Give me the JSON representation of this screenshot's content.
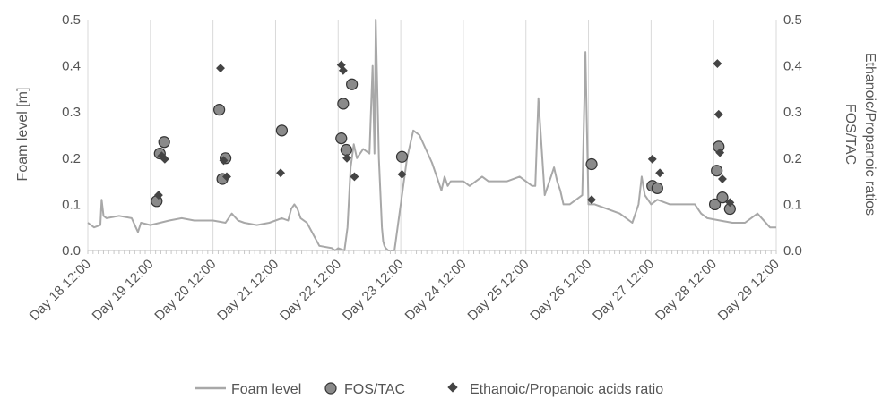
{
  "chart_data": {
    "type": "line",
    "title": "",
    "categories": [
      "Day 18 12:00",
      "Day 19 12:00",
      "Day 20 12:00",
      "Day 21 12:00",
      "Day 22 12:00",
      "Day 23 12:00",
      "Day 24 12:00",
      "Day 25 12:00",
      "Day 26 12:00",
      "Day 27 12:00",
      "Day 28 12:00",
      "Day 29 12:00"
    ],
    "xlabel": "",
    "ylabel": "Foam level [m]",
    "y2label_lines": [
      "FOS/TAC",
      "Ethanoic/Propanoic ratios"
    ],
    "xlim": [
      18.5,
      29.5
    ],
    "ylim": [
      0,
      0.5
    ],
    "y2lim": [
      0,
      0.5
    ],
    "yticks": [
      "0.0",
      "0.1",
      "0.2",
      "0.3",
      "0.4",
      "0.5"
    ],
    "y2ticks": [
      "0.0",
      "0.1",
      "0.2",
      "0.3",
      "0.4",
      "0.5"
    ],
    "grid": "vertical",
    "legend_position": "bottom",
    "colors": {
      "foam": "#a8a8a8",
      "fos_marker": "#8a8a8a",
      "ratio_marker": "#444444",
      "grid": "#d9d9d9",
      "text": "#555555"
    },
    "series": [
      {
        "name": "Foam level",
        "kind": "line",
        "x": [
          18.5,
          18.6,
          18.7,
          18.72,
          18.75,
          18.8,
          19.0,
          19.2,
          19.3,
          19.35,
          19.5,
          19.8,
          20.0,
          20.2,
          20.5,
          20.7,
          20.8,
          20.9,
          21.0,
          21.2,
          21.4,
          21.6,
          21.7,
          21.75,
          21.8,
          21.85,
          21.9,
          22.0,
          22.2,
          22.4,
          22.45,
          22.5,
          22.6,
          22.65,
          22.7,
          22.75,
          22.8,
          22.9,
          23.0,
          23.05,
          23.08,
          23.1,
          23.15,
          23.2,
          23.22,
          23.24,
          23.26,
          23.3,
          23.4,
          23.5,
          23.6,
          23.7,
          23.8,
          23.9,
          24.0,
          24.1,
          24.15,
          24.2,
          24.25,
          24.3,
          24.4,
          24.5,
          24.6,
          24.7,
          24.8,
          24.9,
          25.0,
          25.2,
          25.4,
          25.6,
          25.65,
          25.7,
          25.8,
          25.9,
          25.95,
          26.0,
          26.05,
          26.1,
          26.2,
          26.4,
          26.45,
          26.5,
          26.6,
          26.8,
          27.0,
          27.2,
          27.3,
          27.35,
          27.4,
          27.5,
          27.6,
          27.8,
          28.0,
          28.2,
          28.3,
          28.4,
          28.6,
          28.8,
          29.0,
          29.2,
          29.4,
          29.5
        ],
        "values": [
          0.06,
          0.05,
          0.055,
          0.11,
          0.075,
          0.07,
          0.075,
          0.07,
          0.04,
          0.06,
          0.055,
          0.065,
          0.07,
          0.065,
          0.065,
          0.06,
          0.08,
          0.065,
          0.06,
          0.055,
          0.06,
          0.07,
          0.065,
          0.09,
          0.1,
          0.09,
          0.07,
          0.06,
          0.01,
          0.005,
          0.0,
          0.005,
          0.0,
          0.05,
          0.18,
          0.23,
          0.2,
          0.22,
          0.21,
          0.4,
          0.21,
          0.5,
          0.2,
          0.05,
          0.02,
          0.01,
          0.005,
          0.0,
          0.0,
          0.1,
          0.2,
          0.26,
          0.25,
          0.22,
          0.19,
          0.15,
          0.13,
          0.16,
          0.14,
          0.15,
          0.15,
          0.15,
          0.14,
          0.15,
          0.16,
          0.15,
          0.15,
          0.15,
          0.16,
          0.14,
          0.14,
          0.33,
          0.12,
          0.16,
          0.18,
          0.15,
          0.13,
          0.1,
          0.1,
          0.12,
          0.43,
          0.1,
          0.1,
          0.09,
          0.08,
          0.06,
          0.1,
          0.16,
          0.12,
          0.1,
          0.11,
          0.1,
          0.1,
          0.1,
          0.08,
          0.07,
          0.065,
          0.06,
          0.06,
          0.08,
          0.05,
          0.05
        ]
      },
      {
        "name": "FOS/TAC",
        "kind": "scatter",
        "x": [
          19.6,
          19.65,
          19.72,
          20.6,
          20.65,
          20.7,
          21.6,
          22.55,
          22.58,
          22.63,
          22.72,
          23.52,
          26.55,
          27.52,
          27.6,
          28.52,
          28.55,
          28.58,
          28.64,
          28.76
        ],
        "values": [
          0.107,
          0.21,
          0.235,
          0.305,
          0.155,
          0.2,
          0.26,
          0.243,
          0.318,
          0.218,
          0.36,
          0.203,
          0.187,
          0.14,
          0.135,
          0.1,
          0.173,
          0.225,
          0.115,
          0.09
        ]
      },
      {
        "name": "Ethanoic/Propanoic acids ratio",
        "kind": "scatter",
        "x": [
          19.63,
          19.68,
          19.73,
          20.62,
          20.67,
          20.72,
          21.58,
          22.55,
          22.58,
          22.64,
          22.76,
          23.52,
          26.55,
          27.52,
          27.64,
          28.56,
          28.58,
          28.6,
          28.64,
          28.76
        ],
        "values": [
          0.12,
          0.205,
          0.198,
          0.395,
          0.195,
          0.16,
          0.168,
          0.402,
          0.39,
          0.2,
          0.16,
          0.165,
          0.11,
          0.198,
          0.168,
          0.405,
          0.295,
          0.212,
          0.155,
          0.104
        ]
      }
    ]
  }
}
